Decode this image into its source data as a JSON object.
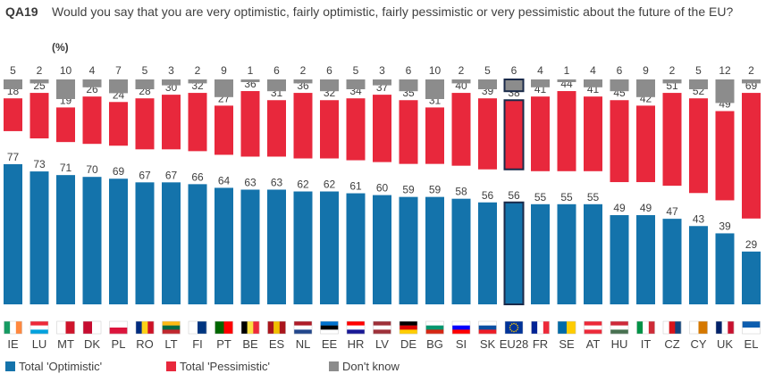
{
  "header": {
    "qid": "QA19",
    "question": "Would you say that you are very optimistic, fairly optimistic, fairly pessimistic or very pessimistic about the future of the EU?",
    "unit": "(%)"
  },
  "chart_data": {
    "type": "bar",
    "title": "QA19 Would you say that you are very optimistic, fairly optimistic, fairly pessimistic or very pessimistic about the future of the EU?",
    "unit": "%",
    "categories": [
      "IE",
      "LU",
      "MT",
      "DK",
      "PL",
      "RO",
      "LT",
      "FI",
      "PT",
      "BE",
      "ES",
      "NL",
      "EE",
      "HR",
      "LV",
      "DE",
      "BG",
      "SI",
      "SK",
      "EU28",
      "FR",
      "SE",
      "AT",
      "HU",
      "IT",
      "CZ",
      "CY",
      "UK",
      "EL"
    ],
    "highlight": "EU28",
    "series": [
      {
        "name": "Total 'Optimistic'",
        "color": "#1473ab",
        "values": [
          77,
          73,
          71,
          70,
          69,
          67,
          67,
          66,
          64,
          63,
          63,
          62,
          62,
          61,
          60,
          59,
          59,
          58,
          56,
          56,
          55,
          55,
          55,
          49,
          49,
          47,
          43,
          39,
          29
        ]
      },
      {
        "name": "Total 'Pessimistic'",
        "color": "#e8283c",
        "values": [
          18,
          25,
          19,
          26,
          24,
          28,
          30,
          32,
          27,
          36,
          31,
          36,
          32,
          34,
          37,
          35,
          31,
          40,
          39,
          38,
          41,
          44,
          41,
          45,
          42,
          51,
          52,
          49,
          69
        ]
      },
      {
        "name": "Don't know",
        "color": "#8c8c8c",
        "values": [
          5,
          2,
          10,
          4,
          7,
          5,
          3,
          2,
          9,
          1,
          6,
          2,
          6,
          5,
          3,
          6,
          10,
          2,
          5,
          6,
          4,
          1,
          4,
          6,
          9,
          2,
          5,
          12,
          2
        ]
      }
    ]
  },
  "flags": {
    "IE": [
      "#169b62",
      "#ffffff",
      "#ff883e"
    ],
    "LU": [
      "#ed2939",
      "#ffffff",
      "#00a1de"
    ],
    "MT": [
      "#ffffff",
      "#cf142b"
    ],
    "DK": [
      "#c60c30",
      "#ffffff"
    ],
    "PL": [
      "#ffffff",
      "#dc143c"
    ],
    "RO": [
      "#002b7f",
      "#fcd116",
      "#ce1126"
    ],
    "LT": [
      "#fdb913",
      "#006a44",
      "#c1272d"
    ],
    "FI": [
      "#ffffff",
      "#003580"
    ],
    "PT": [
      "#006600",
      "#ff0000"
    ],
    "BE": [
      "#000000",
      "#fae042",
      "#ed2939"
    ],
    "ES": [
      "#aa151b",
      "#f1bf00",
      "#aa151b"
    ],
    "NL": [
      "#ae1c28",
      "#ffffff",
      "#21468b"
    ],
    "EE": [
      "#0072ce",
      "#000000",
      "#ffffff"
    ],
    "HR": [
      "#ff0000",
      "#ffffff",
      "#171796"
    ],
    "LV": [
      "#9e3039",
      "#ffffff",
      "#9e3039"
    ],
    "DE": [
      "#000000",
      "#dd0000",
      "#ffce00"
    ],
    "BG": [
      "#ffffff",
      "#00966e",
      "#d62612"
    ],
    "SI": [
      "#ffffff",
      "#0000ff",
      "#ff0000"
    ],
    "SK": [
      "#ffffff",
      "#0b4ea2",
      "#ee1c25"
    ],
    "EU28": [
      "#003399",
      "#ffcc00"
    ],
    "FR": [
      "#002395",
      "#ffffff",
      "#ed2939"
    ],
    "SE": [
      "#006aa7",
      "#fecc00"
    ],
    "AT": [
      "#ed2939",
      "#ffffff",
      "#ed2939"
    ],
    "HU": [
      "#ce2939",
      "#ffffff",
      "#477050"
    ],
    "IT": [
      "#009246",
      "#ffffff",
      "#ce2b37"
    ],
    "CZ": [
      "#ffffff",
      "#d7141a",
      "#11457e"
    ],
    "CY": [
      "#ffffff",
      "#d57800"
    ],
    "UK": [
      "#012169",
      "#ffffff",
      "#c8102e"
    ],
    "EL": [
      "#0d5eaf",
      "#ffffff"
    ]
  },
  "legend": {
    "optimistic": "Total 'Optimistic'",
    "pessimistic": "Total 'Pessimistic'",
    "dont_know": "Don't know"
  }
}
